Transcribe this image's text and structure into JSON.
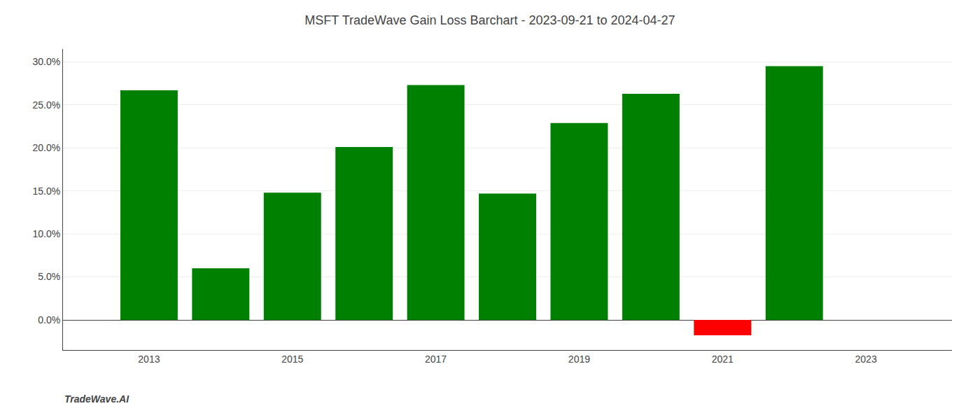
{
  "chart_data": {
    "type": "bar",
    "title": "MSFT TradeWave Gain Loss Barchart - 2023-09-21 to 2024-04-27",
    "x": [
      2013,
      2014,
      2015,
      2016,
      2017,
      2018,
      2019,
      2020,
      2021,
      2022
    ],
    "values": [
      0.267,
      0.06,
      0.148,
      0.201,
      0.273,
      0.147,
      0.229,
      0.263,
      -0.018,
      0.295
    ],
    "colors": [
      "#008000",
      "#008000",
      "#008000",
      "#008000",
      "#008000",
      "#008000",
      "#008000",
      "#008000",
      "#ff0000",
      "#008000"
    ],
    "xlim": [
      2011.8,
      2024.2
    ],
    "xticks": [
      2013,
      2015,
      2017,
      2019,
      2021,
      2023
    ],
    "ylim": [
      -0.035,
      0.315
    ],
    "yticks": [
      {
        "value": 0.0,
        "label": "0.0%"
      },
      {
        "value": 0.05,
        "label": "5.0%"
      },
      {
        "value": 0.1,
        "label": "10.0%"
      },
      {
        "value": 0.15,
        "label": "15.0%"
      },
      {
        "value": 0.2,
        "label": "20.0%"
      },
      {
        "value": 0.25,
        "label": "25.0%"
      },
      {
        "value": 0.3,
        "label": "30.0%"
      }
    ],
    "grid": true,
    "annotations": [
      "TradeWave.AI"
    ]
  }
}
